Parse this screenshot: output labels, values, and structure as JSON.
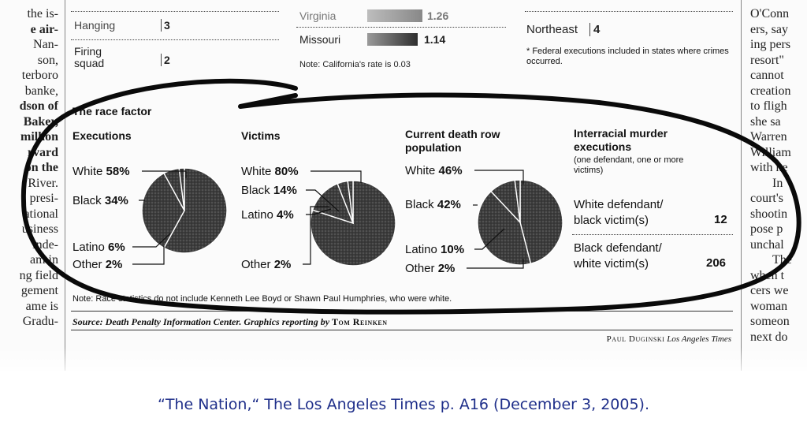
{
  "caption": "“The Nation,“ The Los Angeles Times p. A16 (December 3, 2005).",
  "left_column": [
    "the is-",
    "e air-",
    "Nan-",
    "son,",
    "terboro",
    "",
    "banke,",
    "dson of",
    "Baker,",
    "million",
    "rvard",
    "on the",
    "River.",
    "presi-",
    "ational",
    "usiness",
    "inde-",
    "am in",
    "ng field",
    "gement",
    "",
    "ame is",
    "Gradu-"
  ],
  "right_column": [
    "O'Conn",
    "ers, say",
    "ing pers",
    "resort\"",
    "cannot",
    "creation",
    "to fligh",
    "she sa",
    "Warren",
    "William",
    "with he",
    "In",
    "court's",
    "shootin",
    "pose p",
    "unchal",
    "The",
    "when t",
    "cers we",
    "woman",
    "someon",
    "next do"
  ],
  "methods": {
    "hanging_label": "Hanging",
    "hanging_value": "3",
    "firing_label_1": "Firing",
    "firing_label_2": "squad",
    "firing_value": "2"
  },
  "rates": {
    "virginia_label": "Virginia",
    "virginia_value": "1.26",
    "missouri_label": "Missouri",
    "missouri_value": "1.14",
    "note": "Note: California's rate is 0.03"
  },
  "regions": {
    "northeast_label": "Northeast",
    "northeast_value": "4",
    "federal_note": "* Federal executions included in states where crimes occurred."
  },
  "race": {
    "title": "The race factor",
    "note": "Note: Race statistics do not include Kenneth Lee Boyd or Shawn Paul Humphries, who were white.",
    "source_prefix": "Source: Death Penalty Information Center. Graphics reporting by",
    "source_name": "Tom Reinken",
    "credit_name": "Paul Duginski",
    "credit_paper": "Los Angeles Times",
    "interracial": {
      "title_1": "Interracial murder",
      "title_2": "executions",
      "subtitle_1": "(one defendant, one or more",
      "subtitle_2": "victims)",
      "row1_label_1": "White defendant/",
      "row1_label_2": "black victim(s)",
      "row1_value": "12",
      "row2_label_1": "Black defendant/",
      "row2_label_2": "white victim(s)",
      "row2_value": "206"
    }
  },
  "chart_data": [
    {
      "type": "pie",
      "title": "Executions",
      "series": [
        {
          "name": "White",
          "label": "58%",
          "value": 58
        },
        {
          "name": "Black",
          "label": "34%",
          "value": 34
        },
        {
          "name": "Latino",
          "label": "6%",
          "value": 6
        },
        {
          "name": "Other",
          "label": "2%",
          "value": 2
        }
      ]
    },
    {
      "type": "pie",
      "title": "Victims",
      "series": [
        {
          "name": "White",
          "label": "80%",
          "value": 80
        },
        {
          "name": "Black",
          "label": "14%",
          "value": 14
        },
        {
          "name": "Latino",
          "label": "4%",
          "value": 4
        },
        {
          "name": "Other",
          "label": "2%",
          "value": 2
        }
      ]
    },
    {
      "type": "pie",
      "title_1": "Current death row",
      "title_2": "population",
      "series": [
        {
          "name": "White",
          "label": "46%",
          "value": 46
        },
        {
          "name": "Black",
          "label": "42%",
          "value": 42
        },
        {
          "name": "Latino",
          "label": "10%",
          "value": 10
        },
        {
          "name": "Other",
          "label": "2%",
          "value": 2
        }
      ]
    }
  ],
  "colors": {
    "pie_fill": "#3c3c3c",
    "divider": "#ffffff",
    "marker": "#0a0a0a",
    "caption": "#1f2f8a"
  }
}
